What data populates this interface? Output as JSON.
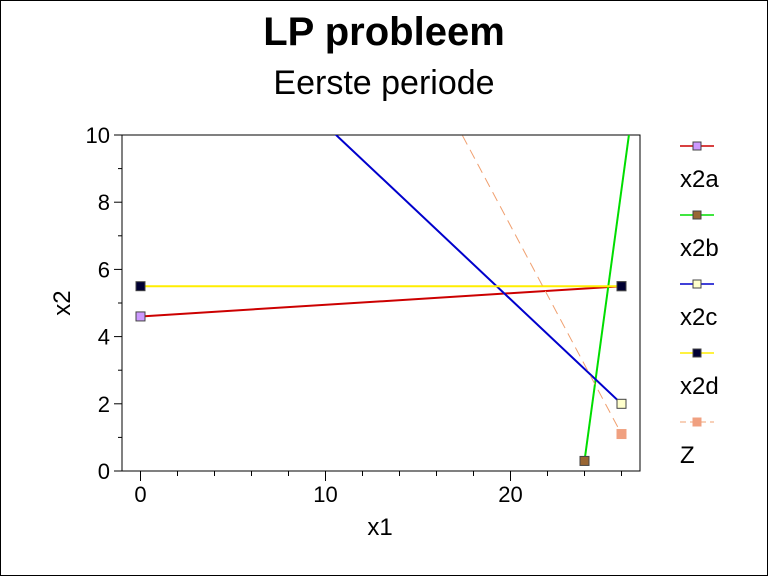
{
  "chart_data": {
    "type": "line",
    "title": "LP probleem",
    "subtitle": "Eerste periode",
    "xlabel": "x1",
    "ylabel": "x2",
    "xlim": [
      -1,
      27
    ],
    "ylim": [
      0,
      10
    ],
    "x_ticks": [
      0,
      10,
      20
    ],
    "y_ticks": [
      0,
      2,
      4,
      6,
      8,
      10
    ],
    "grid": false,
    "legend_position": "right",
    "series": [
      {
        "name": "x2a",
        "color": "#cc0000",
        "marker_fill": "#cc99ff",
        "dashed": false,
        "points": [
          [
            0,
            4.6
          ],
          [
            26,
            5.5
          ]
        ]
      },
      {
        "name": "x2b",
        "color": "#00dd00",
        "marker_fill": "#996633",
        "dashed": false,
        "points": [
          [
            24,
            0.3
          ],
          [
            26.5,
            10.4
          ]
        ]
      },
      {
        "name": "x2c",
        "color": "#0000cc",
        "marker_fill": "#ffffcc",
        "dashed": false,
        "points": [
          [
            9.8,
            10.4
          ],
          [
            26,
            2
          ]
        ]
      },
      {
        "name": "x2d",
        "color": "#ffee00",
        "marker_fill": "#000033",
        "dashed": false,
        "points": [
          [
            0,
            5.5
          ],
          [
            26,
            5.5
          ]
        ]
      },
      {
        "name": "Z",
        "color": "#f0a070",
        "marker_fill": "#f0a080",
        "dashed": true,
        "points": [
          [
            17,
            10.4
          ],
          [
            26,
            1.1
          ]
        ]
      }
    ]
  }
}
